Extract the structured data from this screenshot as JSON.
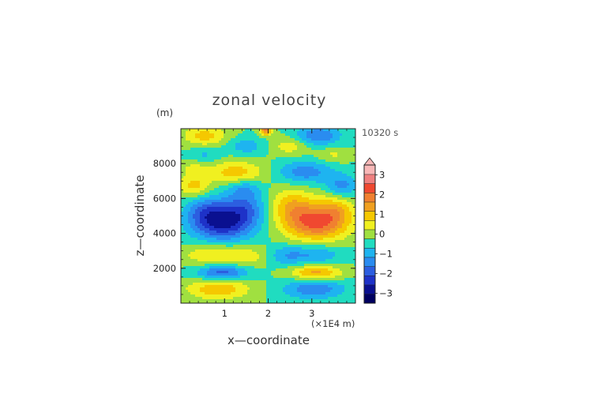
{
  "chart_data": {
    "type": "heatmap",
    "title": "zonal velocity",
    "xlabel": "x—coordinate",
    "ylabel": "z—coordinate",
    "x_unit": "(×1E4 m)",
    "y_unit": "(m)",
    "annotation": "10320 s",
    "xlim": [
      0,
      4
    ],
    "ylim": [
      0,
      10000
    ],
    "x_ticks": [
      1,
      2,
      3
    ],
    "y_ticks": [
      2000,
      4000,
      6000,
      8000
    ],
    "colorbar": {
      "ticks": [
        3,
        2,
        1,
        0,
        -1,
        -2,
        -3
      ],
      "levels": [
        -3.5,
        -3,
        -2.5,
        -2,
        -1.5,
        -1,
        -0.5,
        0,
        0.5,
        1,
        1.5,
        2,
        2.5,
        3,
        3.5
      ],
      "extend": "max",
      "colors": [
        "#000060",
        "#0a1090",
        "#1e32c8",
        "#2c5ee0",
        "#2a8cf0",
        "#1eb4f0",
        "#20dcc0",
        "#a0e040",
        "#f0f020",
        "#f5c800",
        "#f0a020",
        "#f08030",
        "#f04830",
        "#f08080",
        "#f8b8b8"
      ]
    },
    "blobs": [
      {
        "x": 0.95,
        "z": 4600,
        "value": -2.6,
        "sx": 0.5,
        "sz": 700
      },
      {
        "x": 1.45,
        "z": 5600,
        "value": -1.3,
        "sx": 0.35,
        "sz": 700
      },
      {
        "x": 0.55,
        "z": 5400,
        "value": -1.0,
        "sx": 0.3,
        "sz": 600
      },
      {
        "x": 3.1,
        "z": 4600,
        "value": 2.6,
        "sx": 0.5,
        "sz": 700
      },
      {
        "x": 2.55,
        "z": 5600,
        "value": 1.3,
        "sx": 0.35,
        "sz": 700
      },
      {
        "x": 3.55,
        "z": 5400,
        "value": 1.0,
        "sx": 0.3,
        "sz": 600
      },
      {
        "x": 0.75,
        "z": 2800,
        "value": 1.0,
        "sx": 0.5,
        "sz": 400
      },
      {
        "x": 1.65,
        "z": 2700,
        "value": 0.6,
        "sx": 0.3,
        "sz": 400
      },
      {
        "x": 3.0,
        "z": 2800,
        "value": -1.0,
        "sx": 0.5,
        "sz": 400
      },
      {
        "x": 2.35,
        "z": 2700,
        "value": -0.6,
        "sx": 0.3,
        "sz": 400
      },
      {
        "x": 0.95,
        "z": 1750,
        "value": -1.7,
        "sx": 0.4,
        "sz": 280
      },
      {
        "x": 3.1,
        "z": 1750,
        "value": 1.7,
        "sx": 0.4,
        "sz": 280
      },
      {
        "x": 0.85,
        "z": 800,
        "value": 1.4,
        "sx": 0.5,
        "sz": 400
      },
      {
        "x": 3.05,
        "z": 800,
        "value": -1.4,
        "sx": 0.5,
        "sz": 400
      },
      {
        "x": 1.25,
        "z": 7500,
        "value": 1.3,
        "sx": 0.45,
        "sz": 450
      },
      {
        "x": 0.3,
        "z": 6700,
        "value": 1.2,
        "sx": 0.25,
        "sz": 450
      },
      {
        "x": 0.3,
        "z": 7700,
        "value": 0.6,
        "sx": 0.2,
        "sz": 300
      },
      {
        "x": 2.85,
        "z": 7500,
        "value": -1.3,
        "sx": 0.45,
        "sz": 450
      },
      {
        "x": 3.7,
        "z": 6700,
        "value": -1.2,
        "sx": 0.25,
        "sz": 450
      },
      {
        "x": 1.45,
        "z": 6600,
        "value": -0.7,
        "sx": 0.25,
        "sz": 350
      },
      {
        "x": 0.55,
        "z": 9600,
        "value": 1.2,
        "sx": 0.35,
        "sz": 400
      },
      {
        "x": 1.5,
        "z": 9000,
        "value": -0.8,
        "sx": 0.3,
        "sz": 350
      },
      {
        "x": 3.15,
        "z": 9600,
        "value": -1.5,
        "sx": 0.35,
        "sz": 400
      },
      {
        "x": 2.5,
        "z": 9000,
        "value": 0.8,
        "sx": 0.3,
        "sz": 350
      },
      {
        "x": 1.95,
        "z": 9900,
        "value": 2.2,
        "sx": 0.1,
        "sz": 200
      },
      {
        "x": 0.55,
        "z": 8500,
        "value": -0.6,
        "sx": 0.25,
        "sz": 300
      },
      {
        "x": 3.5,
        "z": 8500,
        "value": 0.6,
        "sx": 0.25,
        "sz": 300
      }
    ]
  }
}
